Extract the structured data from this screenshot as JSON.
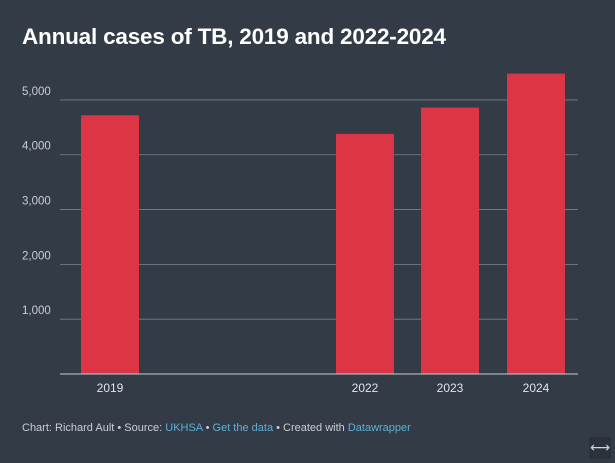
{
  "chart_data": {
    "type": "bar",
    "title": "Annual cases of TB, 2019 and 2022-2024",
    "categories": [
      "2019",
      "2022",
      "2023",
      "2024"
    ],
    "values": [
      4720,
      4380,
      4860,
      5480
    ],
    "ylim": [
      0,
      5400
    ],
    "yticks": [
      1000,
      2000,
      3000,
      4000,
      5000
    ],
    "ytick_labels": [
      "1,000",
      "2,000",
      "3,000",
      "4,000",
      "5,000"
    ],
    "xlabel": "",
    "ylabel": "",
    "grid": true,
    "bar_color": "#dc3545"
  },
  "footer": {
    "prefix": "Chart: Richard Ault • Source: ",
    "source_link": "UKHSA",
    "sep1": " • ",
    "data_link": "Get the data",
    "sep2": " • Created with ",
    "tool_link": "Datawrapper"
  },
  "expand_icon_glyph": "⟷",
  "colors": {
    "background": "#333b47",
    "bar": "#dc3545",
    "grid": "#7a818b",
    "link": "#5fb0d6",
    "text": "#ffffff"
  }
}
